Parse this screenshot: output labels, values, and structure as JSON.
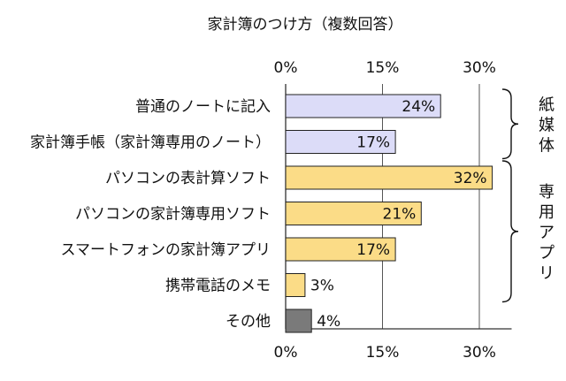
{
  "chart_data": {
    "type": "bar",
    "orientation": "horizontal",
    "title": "家計簿のつけ方（複数回答）",
    "categories": [
      "普通のノートに記入",
      "家計簿手帳（家計簿専用のノート）",
      "パソコンの表計算ソフト",
      "パソコンの家計簿専用ソフト",
      "スマートフォンの家計簿アプリ",
      "携帯電話のメモ",
      "その他"
    ],
    "values": [
      24,
      17,
      32,
      21,
      17,
      3,
      4
    ],
    "value_labels": [
      "24%",
      "17%",
      "32%",
      "21%",
      "17%",
      "3%",
      "4%"
    ],
    "bar_colors": [
      "#dcdcf8",
      "#dcdcf8",
      "#fbdc87",
      "#fbdc87",
      "#fbdc87",
      "#fbdc87",
      "#7a7a7a"
    ],
    "xlim": [
      0,
      35
    ],
    "xticks": [
      0,
      15,
      30
    ],
    "xtick_labels": [
      "0%",
      "15%",
      "30%"
    ],
    "grid": true,
    "groups": [
      {
        "label": "紙媒体",
        "range": [
          0,
          1
        ]
      },
      {
        "label": "専用アプリ",
        "range": [
          2,
          5
        ]
      }
    ]
  }
}
